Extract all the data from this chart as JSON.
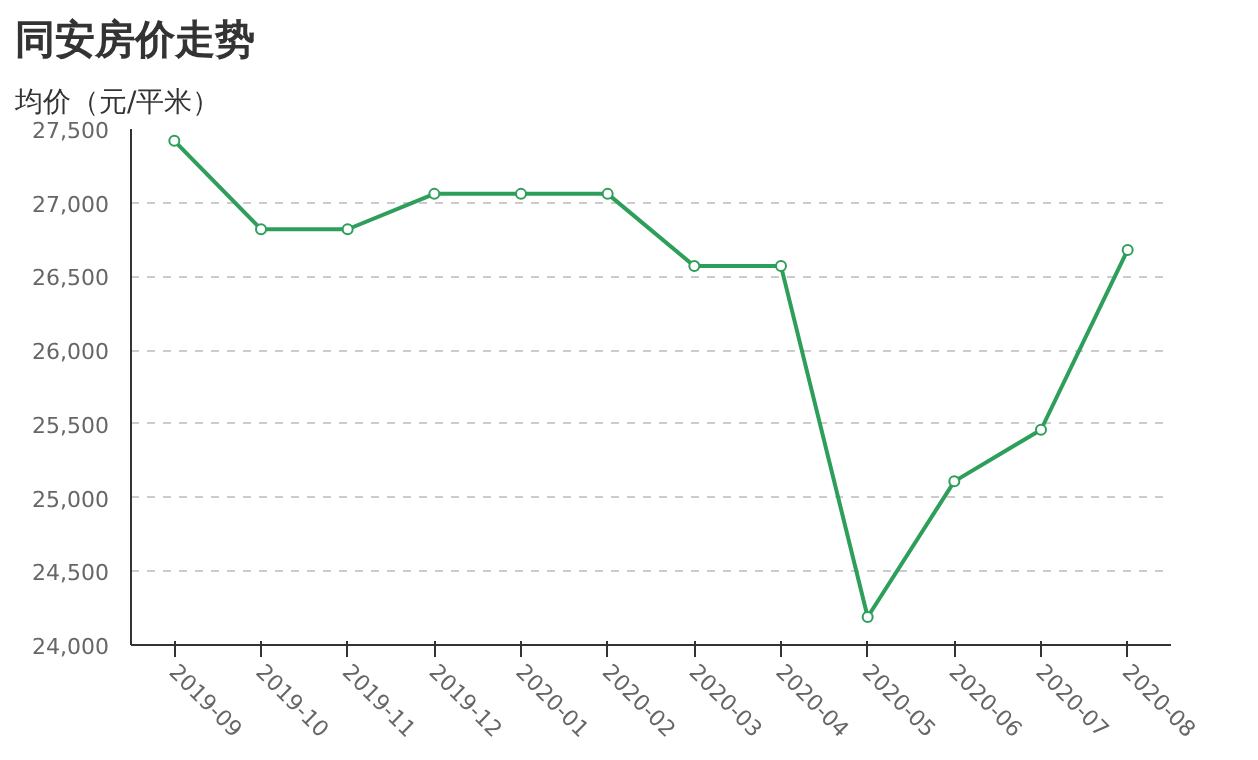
{
  "chart_data": {
    "type": "line",
    "title": "同安房价走势",
    "ylabel": "均价（元/平米）",
    "categories": [
      "2019-09",
      "2019-10",
      "2019-11",
      "2019-12",
      "2020-01",
      "2020-02",
      "2020-03",
      "2020-04",
      "2020-05",
      "2020-06",
      "2020-07",
      "2020-08"
    ],
    "series": [
      {
        "color": "#2e9e5b",
        "values": [
          27420,
          26820,
          26820,
          27060,
          27060,
          27060,
          26570,
          26570,
          24190,
          25110,
          25460,
          26680
        ]
      }
    ],
    "ylim": [
      24000,
      27500
    ],
    "yticks": [
      {
        "value": 24000,
        "label": "24,000"
      },
      {
        "value": 24500,
        "label": "24,500"
      },
      {
        "value": 25000,
        "label": "25,000"
      },
      {
        "value": 25500,
        "label": "25,500"
      },
      {
        "value": 26000,
        "label": "26,000"
      },
      {
        "value": 26500,
        "label": "26,500"
      },
      {
        "value": 27000,
        "label": "27,000"
      },
      {
        "value": 27500,
        "label": "27,500"
      }
    ],
    "grid": "y",
    "marker": "circle",
    "line_style": "solid"
  }
}
